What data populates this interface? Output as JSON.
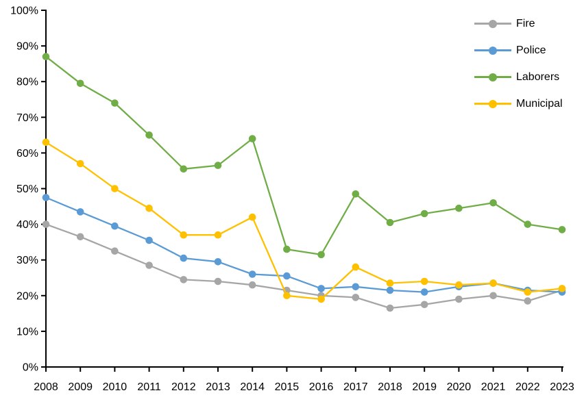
{
  "chart_data": {
    "type": "line",
    "title": "",
    "xlabel": "",
    "ylabel": "",
    "grid": false,
    "legend_position": "top-right",
    "x_labels": [
      "2008",
      "2009",
      "2010",
      "2011",
      "2012",
      "2013",
      "2014",
      "2015",
      "2016",
      "2017",
      "2018",
      "2019",
      "2020",
      "2021",
      "2022",
      "2023"
    ],
    "y_labels": [
      "0%",
      "10%",
      "20%",
      "30%",
      "40%",
      "50%",
      "60%",
      "70%",
      "80%",
      "90%",
      "100%"
    ],
    "y_axis": {
      "min": 0,
      "max": 100,
      "step": 10,
      "unit": "%"
    },
    "series": [
      {
        "name": "Fire",
        "color": "#A6A6A6",
        "values": [
          40,
          36.5,
          32.5,
          28.5,
          24.5,
          24,
          23,
          21.5,
          20,
          19.5,
          16.5,
          17.5,
          19,
          20,
          18.5,
          21.5
        ]
      },
      {
        "name": "Police",
        "color": "#5B9BD5",
        "values": [
          47.5,
          43.5,
          39.5,
          35.5,
          30.5,
          29.5,
          26,
          25.5,
          22,
          22.5,
          21.5,
          21,
          22.5,
          23.5,
          21.5,
          21
        ]
      },
      {
        "name": "Laborers",
        "color": "#70AD47",
        "values": [
          87,
          79.5,
          74,
          65,
          55.5,
          56.5,
          64,
          33,
          31.5,
          48.5,
          40.5,
          43,
          44.5,
          46,
          40,
          38.5
        ]
      },
      {
        "name": "Municipal",
        "color": "#FFC000",
        "values": [
          63,
          57,
          50,
          44.5,
          37,
          37,
          42,
          20,
          19,
          28,
          23.5,
          24,
          23,
          23.5,
          21,
          22
        ]
      }
    ],
    "axis_color": "#000000",
    "background_color": "#FFFFFF"
  }
}
